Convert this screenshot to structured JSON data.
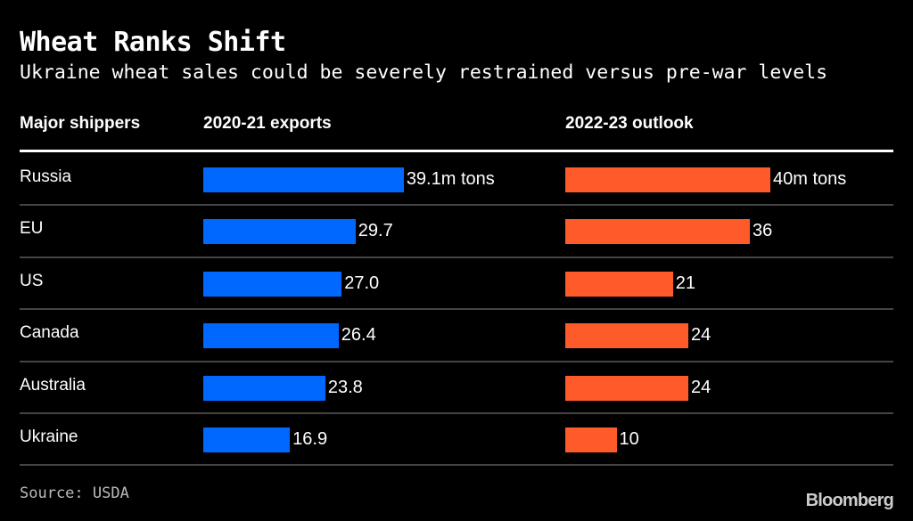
{
  "chart_data": {
    "type": "bar",
    "title": "Wheat Ranks Shift",
    "subtitle": "Ukraine wheat sales could be severely restrained versus pre-war levels",
    "category_header": "Major shippers",
    "categories": [
      "Russia",
      "EU",
      "US",
      "Canada",
      "Australia",
      "Ukraine"
    ],
    "series": [
      {
        "name": "2020-21 exports",
        "color": "#0068ff",
        "values": [
          39.1,
          29.7,
          27.0,
          26.4,
          23.8,
          16.9
        ],
        "labels": [
          "39.1m tons",
          "29.7",
          "27.0",
          "26.4",
          "23.8",
          "16.9"
        ]
      },
      {
        "name": "2022-23 outlook",
        "color": "#ff5a2a",
        "values": [
          40,
          36,
          21,
          24,
          24,
          10
        ],
        "labels": [
          "40m tons",
          "36",
          "21",
          "24",
          "24",
          "10"
        ]
      }
    ],
    "unit": "m tons",
    "source": "Source: USDA",
    "logo": "Bloomberg"
  }
}
